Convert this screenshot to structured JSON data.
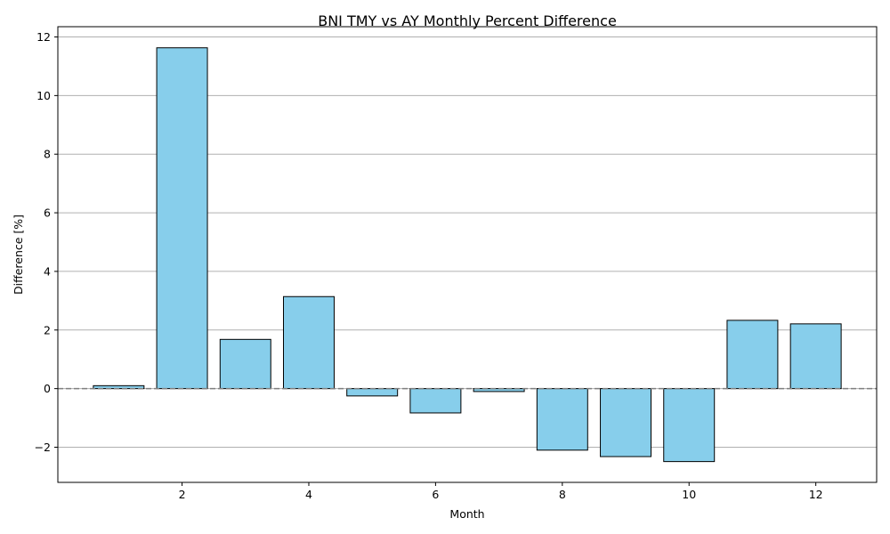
{
  "chart_data": {
    "type": "bar",
    "title": "BNI TMY vs AY Monthly Percent Difference",
    "xlabel": "Month",
    "ylabel": "Difference [%]",
    "x": [
      1,
      2,
      3,
      4,
      5,
      6,
      7,
      8,
      9,
      10,
      11,
      12
    ],
    "values": [
      0.1,
      11.63,
      1.68,
      3.14,
      -0.25,
      -0.83,
      -0.1,
      -2.1,
      -2.32,
      -2.49,
      2.33,
      2.21
    ],
    "xlim": [
      0.04,
      12.96
    ],
    "ylim": [
      -3.2,
      12.35
    ],
    "xticks": [
      2,
      4,
      6,
      8,
      10,
      12
    ],
    "yticks": [
      -2,
      0,
      2,
      4,
      6,
      8,
      10,
      12
    ],
    "ytick_labels": [
      "−2",
      "0",
      "2",
      "4",
      "6",
      "8",
      "10",
      "12"
    ],
    "grid": "y",
    "reference_line": 0,
    "colors": {
      "bar_fill": "#87ceeb",
      "bar_edge": "#000000",
      "grid": "#b0b0b0",
      "reference_line": "#808080"
    }
  }
}
